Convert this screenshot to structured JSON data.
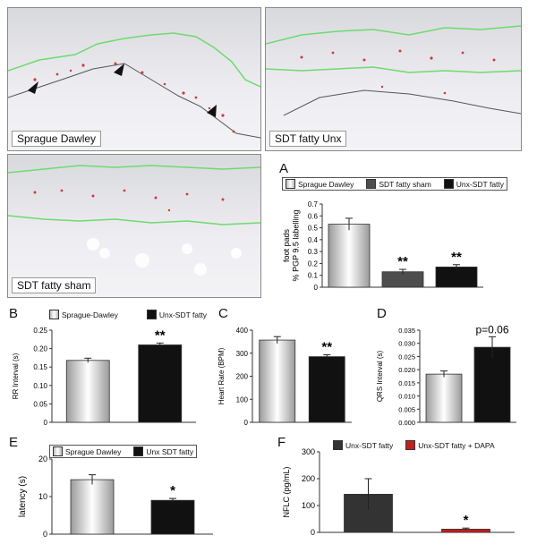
{
  "photos": {
    "sprague_dawley": "Sprague Dawley",
    "sdt_fatty_unx": "SDT fatty Unx",
    "sdt_fatty_sham": "SDT fatty sham"
  },
  "colors": {
    "sprague": "#e8e8e8",
    "sham": "#4d4d4d",
    "unx": "#111111",
    "dapa": "#c0201f",
    "epidermis_line": "#6ddb6d"
  },
  "chart_data": [
    {
      "panel": "A",
      "type": "bar",
      "legend": [
        "Sprague Dawley",
        "SDT fatty sham",
        "Unx-SDT fatty"
      ],
      "ylabel": "foot pads\n% PGP 9.5 labelling",
      "ylim": [
        0,
        0.7
      ],
      "yticks": [
        "0",
        "0.1",
        "0.2",
        "0.3",
        "0.4",
        "0.5",
        "0.6",
        "0.7"
      ],
      "values": [
        0.53,
        0.13,
        0.17
      ],
      "errors": [
        0.05,
        0.02,
        0.02
      ],
      "annotations": [
        "",
        "**",
        "**"
      ]
    },
    {
      "panel": "B",
      "type": "bar",
      "legend": [
        "Sprague-Dawley",
        "Unx-SDT fatty"
      ],
      "ylabel": "RR Interval (s)",
      "ylim": [
        0,
        0.25
      ],
      "yticks": [
        "0",
        "0.05",
        "0.10",
        "0.15",
        "0.20",
        "0.25"
      ],
      "values": [
        0.168,
        0.21
      ],
      "errors": [
        0.006,
        0.005
      ],
      "annotations": [
        "",
        "**"
      ]
    },
    {
      "panel": "C",
      "type": "bar",
      "ylabel": "Heart Rate (BPM)",
      "ylim": [
        0,
        400
      ],
      "yticks": [
        "0",
        "100",
        "200",
        "300",
        "400"
      ],
      "values": [
        357,
        285
      ],
      "errors": [
        15,
        8
      ],
      "annotations": [
        "",
        "**"
      ]
    },
    {
      "panel": "D",
      "type": "bar",
      "ylabel": "QRS Interval (s)",
      "ylim": [
        0,
        0.035
      ],
      "yticks": [
        "0.000",
        "0.005",
        "0.010",
        "0.015",
        "0.020",
        "0.025",
        "0.030",
        "0.035"
      ],
      "values": [
        0.0183,
        0.0285
      ],
      "errors": [
        0.0012,
        0.004
      ],
      "annotations": [
        "",
        "p=0.06"
      ]
    },
    {
      "panel": "E",
      "type": "bar",
      "legend": [
        "Sprague Dawley",
        "Unx SDT fatty"
      ],
      "ylabel": "latency (s)",
      "ylim": [
        0,
        20
      ],
      "yticks": [
        "0",
        "10",
        "20"
      ],
      "values": [
        14.5,
        9.0
      ],
      "errors": [
        1.3,
        0.5
      ],
      "annotations": [
        "",
        "*"
      ]
    },
    {
      "panel": "F",
      "type": "bar",
      "legend": [
        "Unx-SDT fatty",
        "Unx-SDT fatty + DAPA"
      ],
      "ylabel": "NFLC (pg/mL)",
      "ylim": [
        0,
        300
      ],
      "yticks": [
        "0",
        "100",
        "200",
        "300"
      ],
      "values": [
        142,
        12
      ],
      "errors": [
        58,
        4
      ],
      "annotations": [
        "",
        "*"
      ]
    }
  ]
}
